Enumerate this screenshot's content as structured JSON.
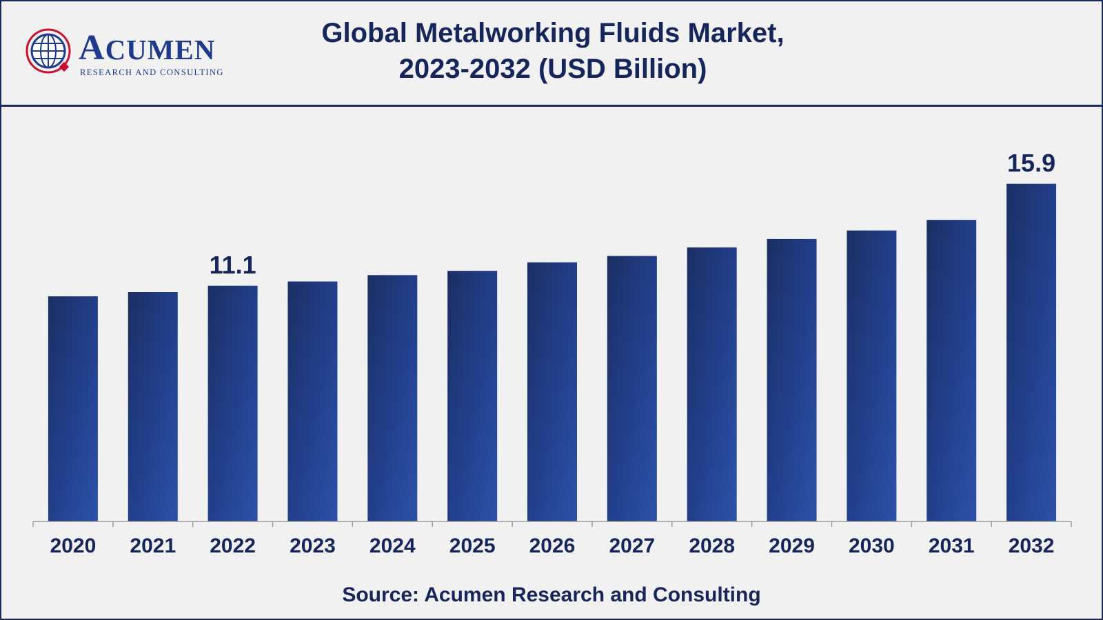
{
  "header": {
    "logo_word_initial": "A",
    "logo_word_rest": "CUMEN",
    "logo_subtitle": "RESEARCH AND CONSULTING",
    "title_line1": "Global Metalworking Fluids Market,",
    "title_line2": "2023-2032 (USD Billion)"
  },
  "chart_data": {
    "type": "bar",
    "title": "Global Metalworking Fluids Market, 2023-2032 (USD Billion)",
    "categories": [
      "2020",
      "2021",
      "2022",
      "2023",
      "2024",
      "2025",
      "2026",
      "2027",
      "2028",
      "2029",
      "2030",
      "2031",
      "2032"
    ],
    "values": [
      10.6,
      10.8,
      11.1,
      11.3,
      11.6,
      11.8,
      12.2,
      12.5,
      12.9,
      13.3,
      13.7,
      14.2,
      15.9
    ],
    "data_labels": [
      {
        "index": 2,
        "text": "11.1"
      },
      {
        "index": 12,
        "text": "15.9"
      }
    ],
    "ylim": [
      0,
      18
    ],
    "grid": false,
    "bar_color": "#23408e"
  },
  "footer": {
    "source": "Source: Acumen Research and Consulting"
  }
}
